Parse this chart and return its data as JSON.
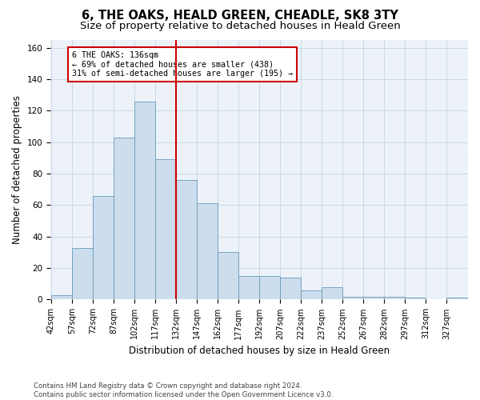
{
  "title": "6, THE OAKS, HEALD GREEN, CHEADLE, SK8 3TY",
  "subtitle": "Size of property relative to detached houses in Heald Green",
  "xlabel": "Distribution of detached houses by size in Heald Green",
  "ylabel": "Number of detached properties",
  "bar_color": "#ccdded",
  "bar_edge_color": "#6699bb",
  "grid_color": "#b8cce0",
  "background_color": "#edf2f8",
  "vline_x": 132,
  "vline_color": "#cc0000",
  "annotation_text": "6 THE OAKS: 136sqm\n← 69% of detached houses are smaller (438)\n31% of semi-detached houses are larger (195) →",
  "annotation_box_color": "#cc0000",
  "bins": [
    42,
    57,
    72,
    87,
    102,
    117,
    132,
    147,
    162,
    177,
    192,
    207,
    222,
    237,
    252,
    267,
    282,
    297,
    312,
    327,
    342
  ],
  "bar_heights": [
    3,
    33,
    66,
    103,
    126,
    89,
    76,
    61,
    30,
    15,
    15,
    14,
    6,
    8,
    2,
    2,
    2,
    1,
    0,
    1
  ],
  "ylim": [
    0,
    165
  ],
  "yticks": [
    0,
    20,
    40,
    60,
    80,
    100,
    120,
    140,
    160
  ],
  "footnote": "Contains HM Land Registry data © Crown copyright and database right 2024.\nContains public sector information licensed under the Open Government Licence v3.0.",
  "title_fontsize": 10.5,
  "subtitle_fontsize": 9.5,
  "tick_fontsize": 7,
  "ylabel_fontsize": 8.5,
  "xlabel_fontsize": 8.5,
  "footnote_fontsize": 6.2
}
